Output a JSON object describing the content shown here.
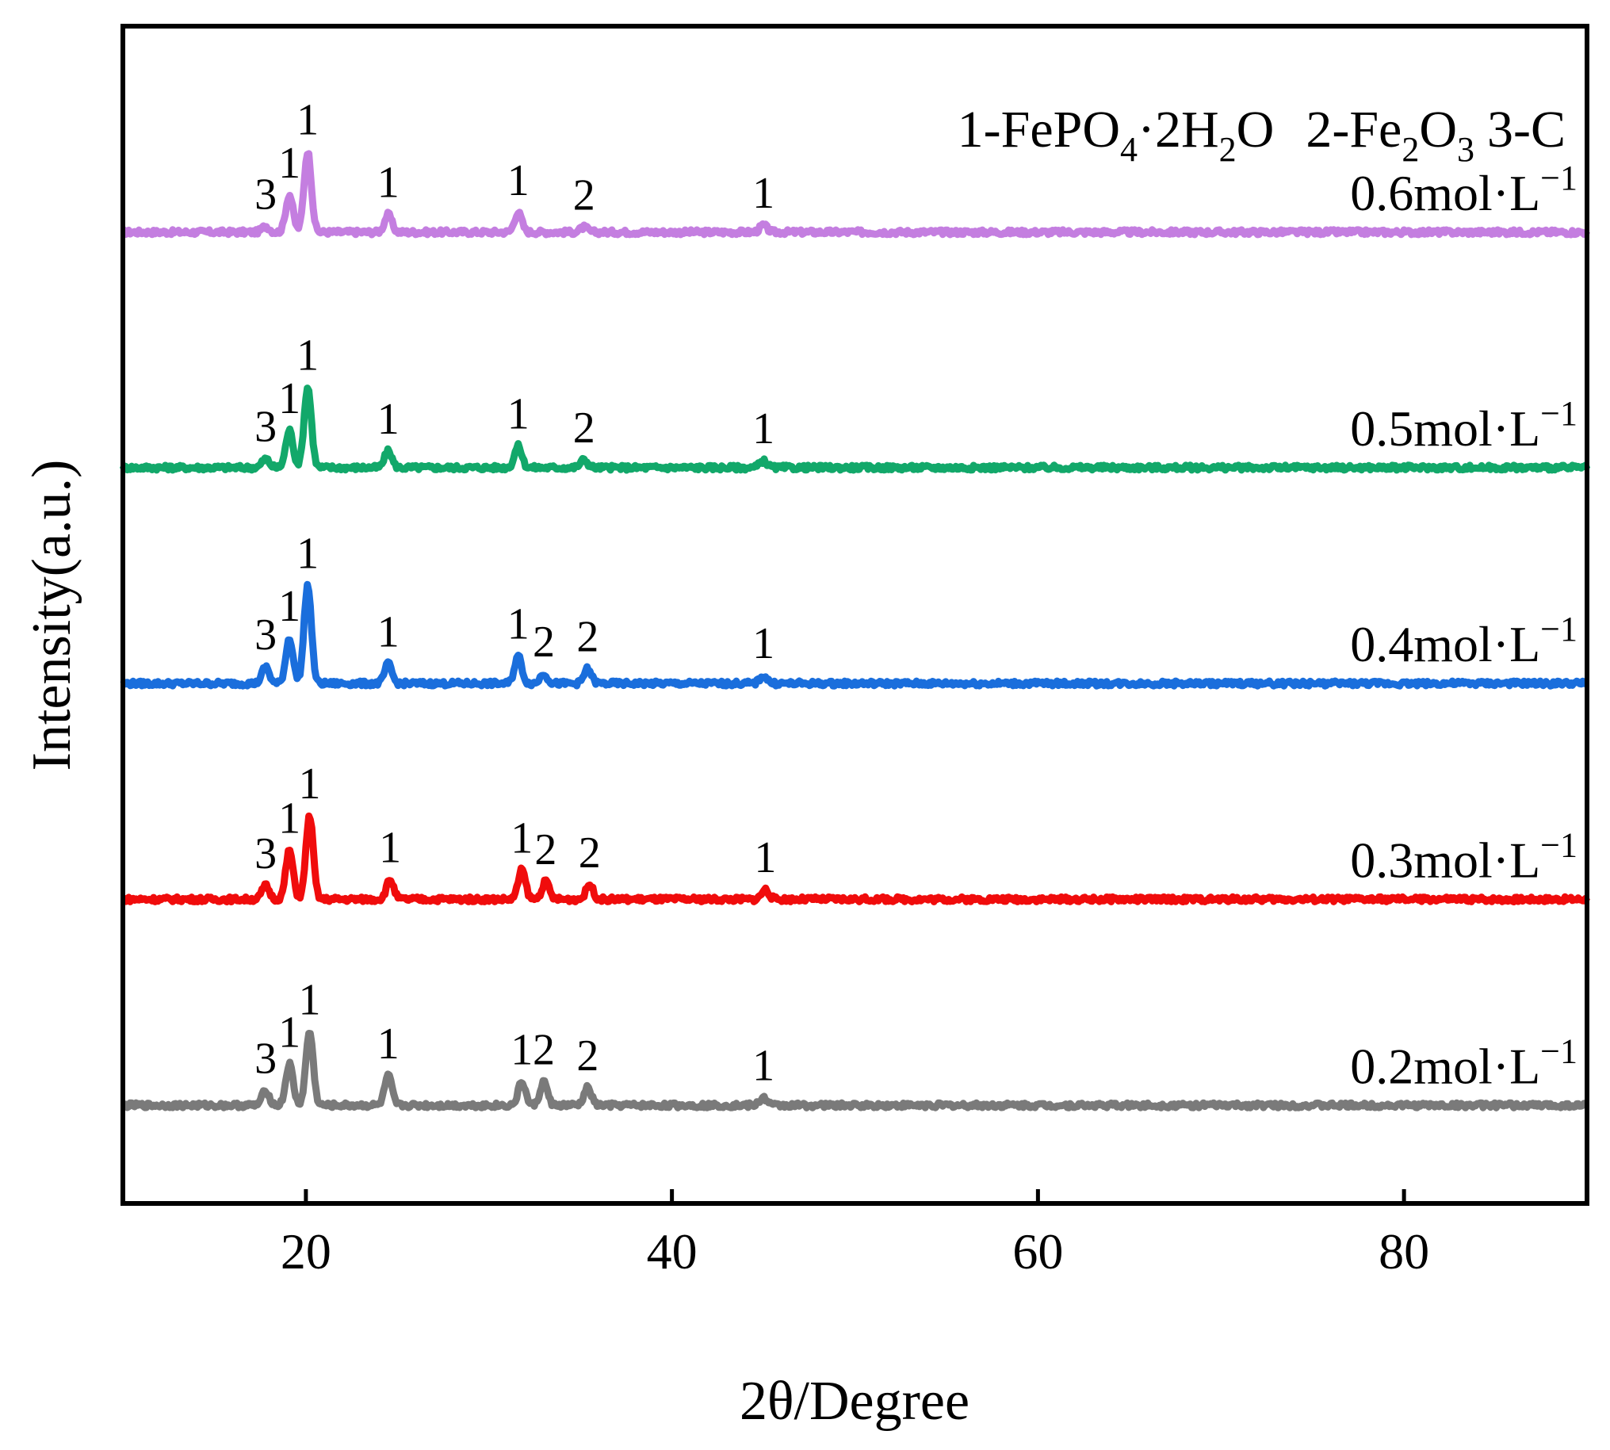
{
  "chart_data": {
    "type": "line",
    "xlabel": "2θ/Degree",
    "ylabel": "Intensity(a.u.)",
    "xlim": [
      10,
      90
    ],
    "xticks": [
      20,
      40,
      60,
      80
    ],
    "yticks": "none",
    "grid": false,
    "legend_text": {
      "p1": "1-FePO",
      "p1_sub": "4",
      "p1b": "·2H",
      "p1b_sub": "2",
      "p1c": "O",
      "p2": "2-Fe",
      "p2_sub1": "2",
      "p2b": "O",
      "p2_sub2": "3",
      "p3": "3-C"
    },
    "series": [
      {
        "name": "0.6mol·L",
        "exp": "−1",
        "color": "#c47ee0",
        "baseline": 8.4,
        "peaks": [
          {
            "x": 17.8,
            "h": 0.06,
            "label": "3"
          },
          {
            "x": 19.1,
            "h": 0.38,
            "label": "1"
          },
          {
            "x": 20.1,
            "h": 0.82,
            "label": "1"
          },
          {
            "x": 24.5,
            "h": 0.18,
            "label": "1"
          },
          {
            "x": 31.6,
            "h": 0.2,
            "label": "1"
          },
          {
            "x": 35.2,
            "h": 0.05,
            "label": "2"
          },
          {
            "x": 45.0,
            "h": 0.07,
            "label": "1"
          }
        ]
      },
      {
        "name": "0.5mol·L",
        "exp": "−1",
        "color": "#12a86a",
        "baseline": 6.0,
        "peaks": [
          {
            "x": 17.8,
            "h": 0.09,
            "label": "3"
          },
          {
            "x": 19.1,
            "h": 0.38,
            "label": "1"
          },
          {
            "x": 20.1,
            "h": 0.82,
            "label": "1"
          },
          {
            "x": 24.5,
            "h": 0.17,
            "label": "1"
          },
          {
            "x": 31.6,
            "h": 0.22,
            "label": "1"
          },
          {
            "x": 35.2,
            "h": 0.08,
            "label": "2"
          },
          {
            "x": 45.0,
            "h": 0.07,
            "label": "1"
          }
        ]
      },
      {
        "name": "0.4mol·L",
        "exp": "−1",
        "color": "#1a6edc",
        "baseline": 3.8,
        "peaks": [
          {
            "x": 17.8,
            "h": 0.17,
            "label": "3"
          },
          {
            "x": 19.1,
            "h": 0.46,
            "label": "1"
          },
          {
            "x": 20.1,
            "h": 1.0,
            "label": "1"
          },
          {
            "x": 24.5,
            "h": 0.2,
            "label": "1"
          },
          {
            "x": 31.6,
            "h": 0.28,
            "label": "1"
          },
          {
            "x": 33.0,
            "h": 0.1,
            "label": "2"
          },
          {
            "x": 35.4,
            "h": 0.15,
            "label": "2"
          },
          {
            "x": 45.0,
            "h": 0.08,
            "label": "1"
          }
        ]
      },
      {
        "name": "0.3mol·L",
        "exp": "−1",
        "color": "#f00c0c",
        "baseline": 1.6,
        "peaks": [
          {
            "x": 17.8,
            "h": 0.14,
            "label": "3"
          },
          {
            "x": 19.1,
            "h": 0.5,
            "label": "1"
          },
          {
            "x": 20.2,
            "h": 0.85,
            "label": "1"
          },
          {
            "x": 24.6,
            "h": 0.2,
            "label": "1"
          },
          {
            "x": 31.8,
            "h": 0.3,
            "label": "1"
          },
          {
            "x": 33.1,
            "h": 0.18,
            "label": "2"
          },
          {
            "x": 35.5,
            "h": 0.15,
            "label": "2"
          },
          {
            "x": 45.1,
            "h": 0.1,
            "label": "1"
          }
        ]
      },
      {
        "name": "0.2mol·L",
        "exp": "−1",
        "color": "#7a7a7a",
        "baseline": -0.5,
        "peaks": [
          {
            "x": 17.8,
            "h": 0.15,
            "label": "3"
          },
          {
            "x": 19.1,
            "h": 0.42,
            "label": "1"
          },
          {
            "x": 20.2,
            "h": 0.75,
            "label": "1"
          },
          {
            "x": 24.5,
            "h": 0.3,
            "label": "1"
          },
          {
            "x": 31.8,
            "h": 0.24,
            "label": "1"
          },
          {
            "x": 33.0,
            "h": 0.24,
            "label": "2"
          },
          {
            "x": 35.4,
            "h": 0.18,
            "label": "2"
          },
          {
            "x": 45.0,
            "h": 0.08,
            "label": "1"
          }
        ]
      }
    ]
  }
}
